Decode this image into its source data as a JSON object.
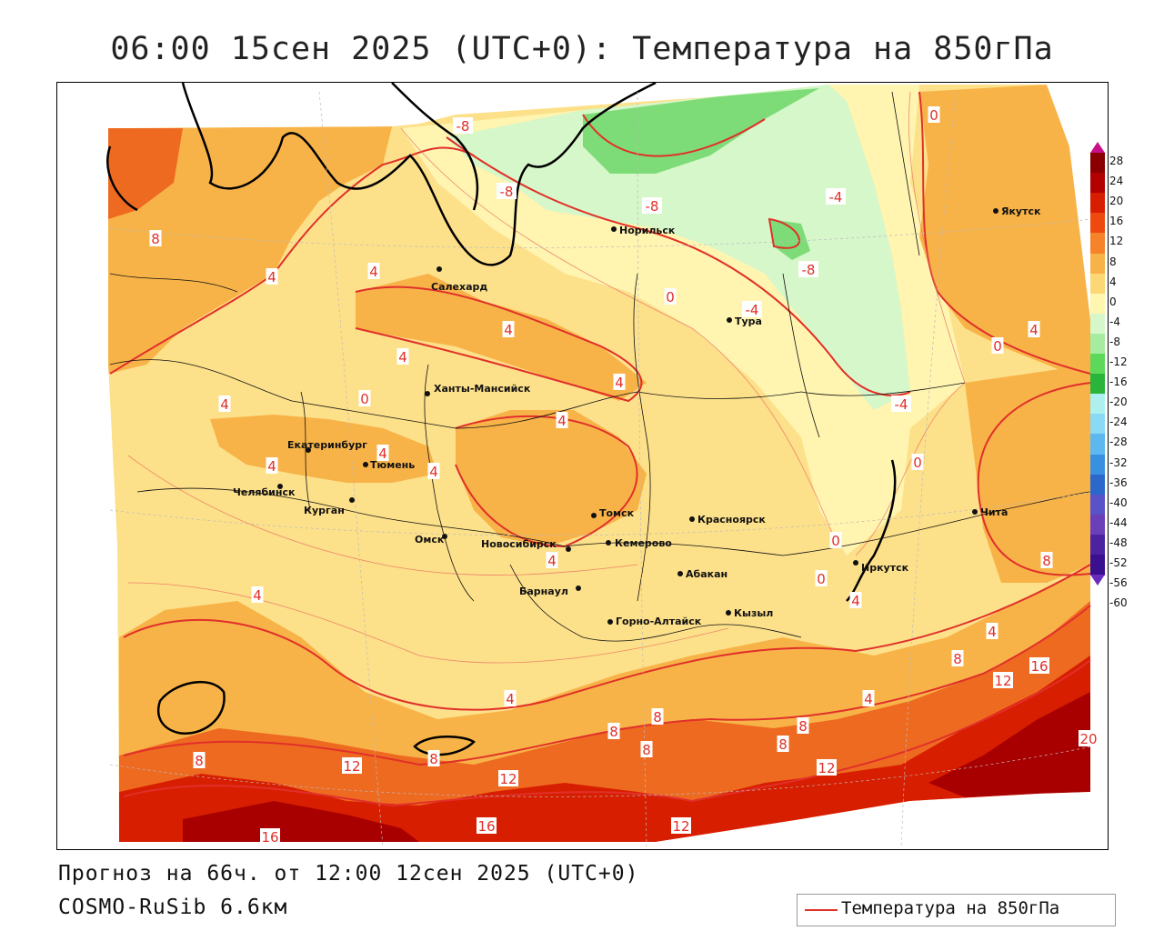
{
  "title": "06:00 15сен 2025 (UTC+0): Температура на 850гПа",
  "forecast_line": "Прогноз на 66ч. от 12:00 12сен 2025 (UTC+0)",
  "model_line": "COSMO-RuSib 6.6км",
  "legend": {
    "label": "Температура на 850гПа",
    "line_color": "#e0302a"
  },
  "colorbar": {
    "levels": [
      "28",
      "24",
      "20",
      "16",
      "12",
      "8",
      "4",
      "0",
      "-4",
      "-8",
      "-12",
      "-16",
      "-20",
      "-24",
      "-28",
      "-32",
      "-36",
      "-40",
      "-44",
      "-48",
      "-52",
      "-56",
      "-60"
    ],
    "colors": [
      "#c8108a",
      "#8a0000",
      "#b30000",
      "#d81e00",
      "#ee4a10",
      "#f6822a",
      "#f8b348",
      "#fbd775",
      "#fff6b0",
      "#d6f7c9",
      "#a5eba0",
      "#5ed85b",
      "#2ab53a",
      "#aef0f0",
      "#8ad9f5",
      "#5cb8ef",
      "#3a90e0",
      "#2c68cc",
      "#5a52c8",
      "#6a3fb8",
      "#4b22a0",
      "#3a1090",
      "#6a2bbf"
    ]
  },
  "isotherm_labels": [
    {
      "value": "-8"
    },
    {
      "value": "-8"
    },
    {
      "value": "-8"
    },
    {
      "value": "-8"
    },
    {
      "value": "-4"
    },
    {
      "value": "-4"
    },
    {
      "value": "-4"
    },
    {
      "value": "0"
    },
    {
      "value": "0"
    },
    {
      "value": "0"
    },
    {
      "value": "0"
    },
    {
      "value": "0"
    },
    {
      "value": "0"
    },
    {
      "value": "0"
    },
    {
      "value": "4"
    },
    {
      "value": "4"
    },
    {
      "value": "4"
    },
    {
      "value": "4"
    },
    {
      "value": "4"
    },
    {
      "value": "4"
    },
    {
      "value": "4"
    },
    {
      "value": "4"
    },
    {
      "value": "4"
    },
    {
      "value": "4"
    },
    {
      "value": "4"
    },
    {
      "value": "4"
    },
    {
      "value": "4"
    },
    {
      "value": "4"
    },
    {
      "value": "4"
    },
    {
      "value": "4"
    },
    {
      "value": "4"
    },
    {
      "value": "8"
    },
    {
      "value": "8"
    },
    {
      "value": "8"
    },
    {
      "value": "8"
    },
    {
      "value": "8"
    },
    {
      "value": "8"
    },
    {
      "value": "8"
    },
    {
      "value": "8"
    },
    {
      "value": "8"
    },
    {
      "value": "8"
    },
    {
      "value": "12"
    },
    {
      "value": "12"
    },
    {
      "value": "12"
    },
    {
      "value": "12"
    },
    {
      "value": "12"
    },
    {
      "value": "16"
    },
    {
      "value": "16"
    },
    {
      "value": "16"
    },
    {
      "value": "20"
    }
  ],
  "cities": [
    {
      "name": "Салехард"
    },
    {
      "name": "Норильск"
    },
    {
      "name": "Якутск"
    },
    {
      "name": "Тура"
    },
    {
      "name": "Ханты-Мансийск"
    },
    {
      "name": "Екатеринбург"
    },
    {
      "name": "Тюмень"
    },
    {
      "name": "Челябинск"
    },
    {
      "name": "Курган"
    },
    {
      "name": "Омск"
    },
    {
      "name": "Новосибирск"
    },
    {
      "name": "Томск"
    },
    {
      "name": "Кемерово"
    },
    {
      "name": "Красноярск"
    },
    {
      "name": "Барнаул"
    },
    {
      "name": "Абакан"
    },
    {
      "name": "Иркутск"
    },
    {
      "name": "Чита"
    },
    {
      "name": "Горно-Алтайск"
    },
    {
      "name": "Кызыл"
    }
  ]
}
